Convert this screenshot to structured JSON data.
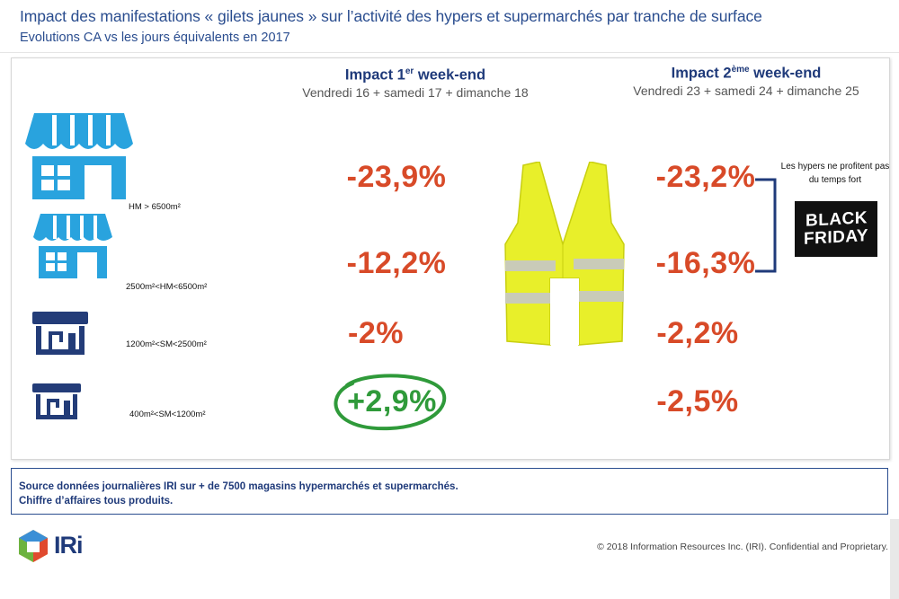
{
  "header": {
    "title": "Impact des manifestations « gilets jaunes » sur l’activité des hypers et supermarchés par tranche de surface",
    "subtitle": "Evolutions CA vs les jours équivalents en 2017"
  },
  "weekends": [
    {
      "label_pre": "Impact 1",
      "label_sup": "er",
      "label_post": " week-end",
      "dates": "Vendredi 16 + samedi 17 + dimanche 18"
    },
    {
      "label_pre": "Impact 2",
      "label_sup": "ème",
      "label_post": " week-end",
      "dates": "Vendredi 23 + samedi 24 + dimanche 25"
    }
  ],
  "segments": [
    {
      "label": "HM > 6500m²",
      "icon": "large-store-icon",
      "w1": "-23,9%",
      "w2": "-23,2%"
    },
    {
      "label": "2500m²<HM<6500m²",
      "icon": "medium-store-icon",
      "w1": "-12,2%",
      "w2": "-16,3%"
    },
    {
      "label": "1200m²<SM<2500m²",
      "icon": "small-store-icon",
      "w1": "-2%",
      "w2": "-2,2%"
    },
    {
      "label": "400m²<SM<1200m²",
      "icon": "smallest-store-icon",
      "w1": "+2,9%",
      "w2": "-2,5%"
    }
  ],
  "annotation": {
    "note": "Les hypers ne profitent pas du temps fort",
    "badge_line1": "BLACK",
    "badge_line2": "FRIDAY"
  },
  "source": {
    "line1": "Source données journalières IRI sur + de 7500 magasins hypermarchés et supermarchés.",
    "line2": "Chiffre d’affaires tous produits."
  },
  "footer": {
    "logo": "IRi",
    "copyright": "© 2018 Information Resources Inc. (IRI). Confidential and Proprietary."
  },
  "colors": {
    "title": "#2a4d8f",
    "negative": "#d84a28",
    "positive": "#2f9a3a",
    "store_icon": "#29a3de",
    "store_icon_dark": "#233c78",
    "vest": "#e8ef2a"
  }
}
